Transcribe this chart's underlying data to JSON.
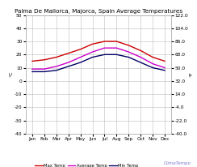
{
  "title": "Palma De Mallorca, Majorca, Spain Average Temperatures",
  "months": [
    "Jan",
    "Feb",
    "Mar",
    "Apr",
    "May",
    "Jun",
    "Jul",
    "Aug",
    "Sep",
    "Oct",
    "Nov",
    "Dec"
  ],
  "max_temp": [
    15,
    16,
    18,
    21,
    24,
    28,
    30,
    30,
    27,
    23,
    18,
    15
  ],
  "avg_temp": [
    9,
    9,
    11,
    14,
    18,
    22,
    25,
    25,
    22,
    18,
    13,
    10
  ],
  "min_temp": [
    7,
    7,
    8,
    11,
    14,
    18,
    20,
    20,
    18,
    14,
    10,
    8
  ],
  "max_color": "#cc0000",
  "avg_color": "#cc00cc",
  "min_color": "#000066",
  "ylim": [
    -40,
    50
  ],
  "yticks_left": [
    50,
    40,
    30,
    20,
    10,
    0,
    -10,
    -20,
    -30,
    -40
  ],
  "background_color": "#ffffff",
  "grid_color": "#bbbbbb",
  "title_fontsize": 5.2,
  "tick_fontsize": 4.2,
  "legend_entries": [
    "Max Temp",
    "Average Temp",
    "Min Temp"
  ],
  "watermark": "ClimaTempo",
  "watermark_color": "#7777cc"
}
